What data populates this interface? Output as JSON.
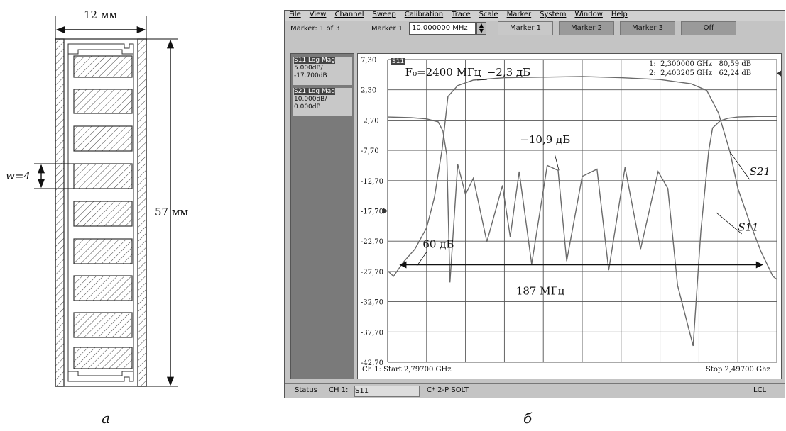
{
  "panel_a": {
    "width_label": "12 мм",
    "height_label": "57 мм",
    "w_label": "w=4",
    "caption": "а"
  },
  "panel_b": {
    "caption": "б",
    "menu": [
      "File",
      "View",
      "Channel",
      "Sweep",
      "Calibration",
      "Trace",
      "Scale",
      "Marker",
      "System",
      "Window",
      "Help"
    ],
    "marker_count": "Marker: 1 of 3",
    "marker_field_label": "Marker 1",
    "marker_value": "10.000000 MHz",
    "buttons": [
      "Marker 1",
      "Marker 2",
      "Marker 3",
      "Off"
    ],
    "traces": [
      {
        "name": "S11 Log Mag",
        "scale": "5.000dB/",
        "ref": "-17.700dB"
      },
      {
        "name": "S21 Log Mag",
        "scale": "10.000dB/",
        "ref": "0.000dB"
      }
    ],
    "plot_tag": "S11",
    "marker_readouts": [
      {
        "n": "1:",
        "freq": "2,300000",
        "unit": "GHz",
        "val": "80,59 dB"
      },
      {
        "n": "2:",
        "freq": "2,403205",
        "unit": "GHz",
        "val": "62,24 dB"
      }
    ],
    "start_label": "Ch 1: Start 2,79700 GHz",
    "stop_label": "Stop 2,49700 Ghz",
    "status": {
      "label": "Status",
      "ch": "CH 1:",
      "trace": "S11",
      "cal": "C* 2-P SOLT",
      "lcl": "LCL"
    }
  },
  "chart_data": {
    "type": "line",
    "y_ticks": [
      "7,30",
      "2,30",
      "-2,70",
      "-7,70",
      "-12,70",
      "-17,70",
      "-22,70",
      "-27,70",
      "-32,70",
      "-37,70",
      "-42,70"
    ],
    "ylim": [
      -42.7,
      7.3
    ],
    "xlim": [
      0,
      10
    ],
    "grid": true,
    "annotations": {
      "f0": "F₀=2400 МГц",
      "peak": "−2,3 дБ",
      "ripple": "−10,9 дБ",
      "s21": "S21",
      "s11": "S11",
      "rej": "60 дБ",
      "bw": "187 МГц"
    },
    "series": [
      {
        "color": "#6a6a6a",
        "x": [
          0.0,
          0.15,
          0.4,
          0.7,
          1.0,
          1.2,
          1.4,
          1.55,
          1.8,
          2.2,
          3.0,
          4.0,
          5.0,
          6.0,
          7.0,
          7.8,
          8.2,
          8.5,
          8.8,
          9.0,
          9.3,
          9.6,
          9.9,
          10.0
        ],
        "y": [
          -27.6,
          -28.5,
          -26.2,
          -24.0,
          -20.5,
          -15.5,
          -7.5,
          1.2,
          3.0,
          3.9,
          4.3,
          4.4,
          4.5,
          4.3,
          4.0,
          3.3,
          2.2,
          -1.5,
          -8.0,
          -14.0,
          -19.5,
          -24.5,
          -28.5,
          -29.0
        ]
      },
      {
        "color": "#6a6a6a",
        "x": [
          0.0,
          0.6,
          1.0,
          1.3,
          1.42,
          1.52,
          1.6,
          1.8,
          2.0,
          2.2,
          2.55,
          2.95,
          3.15,
          3.38,
          3.7,
          4.1,
          4.38,
          4.6,
          5.0,
          5.38,
          5.68,
          6.1,
          6.5,
          6.95,
          7.2,
          7.45,
          7.85,
          8.05,
          8.25,
          8.35,
          8.55,
          8.75,
          9.0,
          9.5,
          10.0
        ],
        "y": [
          -2.2,
          -2.3,
          -2.5,
          -3.0,
          -4.5,
          -8.5,
          -29.5,
          -10.0,
          -15.0,
          -12.3,
          -22.8,
          -13.5,
          -22.0,
          -11.2,
          -26.5,
          -10.2,
          -11.0,
          -26.0,
          -12.0,
          -10.8,
          -27.5,
          -10.5,
          -24.0,
          -11.2,
          -14.0,
          -30.0,
          -40.0,
          -21.0,
          -7.8,
          -4.0,
          -2.8,
          -2.4,
          -2.2,
          -2.1,
          -2.1
        ]
      }
    ]
  }
}
